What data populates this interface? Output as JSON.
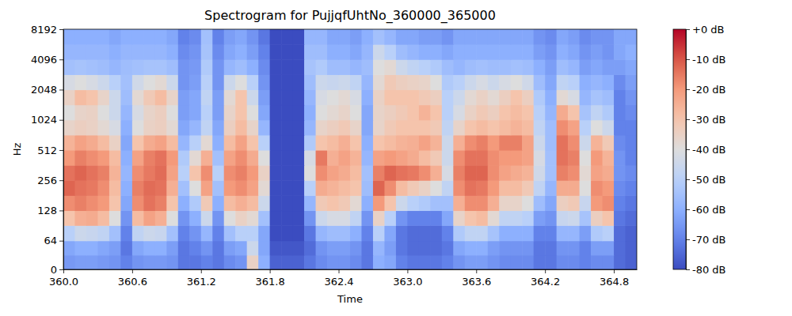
{
  "chart_data": {
    "type": "heatmap",
    "title": "Spectrogram for PujjqfUhtNo_360000_365000",
    "xlabel": "Time",
    "ylabel": "Hz",
    "log": "y",
    "xlim": [
      360,
      365
    ],
    "ylim": [
      0,
      8192
    ],
    "xticks": [
      {
        "value": 360,
        "label": "360.0"
      },
      360.6,
      361.2,
      361.8,
      362.4,
      {
        "value": 363,
        "label": "363.0"
      },
      363.6,
      364.2,
      364.8
    ],
    "yticks": [
      0,
      64,
      128,
      256,
      512,
      1024,
      2048,
      4096,
      8192
    ],
    "x_bins": [
      360,
      360.1,
      360.2,
      360.3,
      360.4,
      360.5,
      360.6,
      360.7,
      360.8,
      360.9,
      361,
      361.1,
      361.2,
      361.3,
      361.4,
      361.5,
      361.6,
      361.7,
      361.8,
      361.9,
      362,
      362.1,
      362.2,
      362.3,
      362.4,
      362.5,
      362.6,
      362.7,
      362.8,
      362.9,
      363,
      363.1,
      363.2,
      363.3,
      363.4,
      363.5,
      363.6,
      363.7,
      363.8,
      363.9,
      364,
      364.1,
      364.2,
      364.3,
      364.4,
      364.5,
      364.6,
      364.7,
      364.8,
      364.9,
      365
    ],
    "y_bins": [
      0,
      32,
      64,
      91,
      128,
      181,
      256,
      362,
      512,
      724,
      1024,
      1448,
      2048,
      2896,
      4096,
      5793,
      8192
    ],
    "values": [
      [
        -65,
        -64,
        -64,
        -65,
        -66,
        -70,
        -66,
        -65,
        -65,
        -66,
        -72,
        -72,
        -70,
        -72,
        -68,
        -66,
        -35,
        -60,
        -76,
        -76,
        -76,
        -72,
        -68,
        -66,
        -66,
        -68,
        -72,
        -60,
        -62,
        -70,
        -72,
        -72,
        -72,
        -70,
        -66,
        -64,
        -64,
        -66,
        -68,
        -68,
        -68,
        -72,
        -72,
        -68,
        -68,
        -70,
        -68,
        -68,
        -74,
        -76
      ],
      [
        -62,
        -60,
        -60,
        -62,
        -64,
        -72,
        -62,
        -60,
        -60,
        -64,
        -72,
        -70,
        -66,
        -72,
        -64,
        -62,
        -45,
        -62,
        -78,
        -78,
        -78,
        -74,
        -66,
        -64,
        -64,
        -66,
        -72,
        -58,
        -64,
        -72,
        -74,
        -74,
        -74,
        -72,
        -62,
        -60,
        -60,
        -64,
        -66,
        -66,
        -66,
        -72,
        -72,
        -66,
        -66,
        -70,
        -64,
        -64,
        -74,
        -76
      ],
      [
        -50,
        -45,
        -46,
        -48,
        -55,
        -70,
        -48,
        -45,
        -46,
        -55,
        -70,
        -66,
        -58,
        -70,
        -55,
        -50,
        -50,
        -62,
        -80,
        -80,
        -80,
        -72,
        -58,
        -56,
        -56,
        -60,
        -70,
        -50,
        -62,
        -72,
        -74,
        -74,
        -74,
        -70,
        -52,
        -48,
        -48,
        -54,
        -60,
        -60,
        -60,
        -70,
        -70,
        -58,
        -58,
        -64,
        -52,
        -50,
        -74,
        -76
      ],
      [
        -30,
        -25,
        -24,
        -28,
        -40,
        -66,
        -28,
        -22,
        -25,
        -40,
        -66,
        -60,
        -45,
        -66,
        -40,
        -35,
        -38,
        -55,
        -80,
        -80,
        -80,
        -66,
        -45,
        -42,
        -42,
        -48,
        -66,
        -35,
        -50,
        -66,
        -70,
        -70,
        -70,
        -62,
        -36,
        -30,
        -28,
        -38,
        -48,
        -48,
        -50,
        -64,
        -66,
        -46,
        -45,
        -54,
        -34,
        -30,
        -72,
        -74
      ],
      [
        -18,
        -16,
        -18,
        -20,
        -30,
        -62,
        -18,
        -14,
        -16,
        -30,
        -60,
        -52,
        -32,
        -60,
        -28,
        -25,
        -28,
        -45,
        -80,
        -80,
        -80,
        -58,
        -32,
        -30,
        -32,
        -38,
        -60,
        -20,
        -30,
        -45,
        -50,
        -52,
        -55,
        -55,
        -25,
        -18,
        -18,
        -25,
        -36,
        -36,
        -40,
        -56,
        -62,
        -34,
        -32,
        -46,
        -20,
        -18,
        -70,
        -72
      ],
      [
        -12,
        -14,
        -15,
        -18,
        -28,
        -60,
        -16,
        -13,
        -14,
        -25,
        -55,
        -40,
        -22,
        -55,
        -20,
        -18,
        -22,
        -38,
        -80,
        -80,
        -80,
        -50,
        -24,
        -26,
        -28,
        -30,
        -56,
        -12,
        -18,
        -28,
        -32,
        -35,
        -40,
        -48,
        -18,
        -14,
        -15,
        -20,
        -28,
        -28,
        -32,
        -48,
        -58,
        -24,
        -24,
        -40,
        -18,
        -20,
        -68,
        -70
      ],
      [
        -14,
        -12,
        -14,
        -16,
        -26,
        -58,
        -18,
        -15,
        -13,
        -22,
        -50,
        -30,
        -18,
        -50,
        -18,
        -16,
        -20,
        -35,
        -80,
        -80,
        -80,
        -40,
        -18,
        -22,
        -24,
        -28,
        -55,
        -16,
        -12,
        -14,
        -15,
        -18,
        -25,
        -42,
        -16,
        -12,
        -12,
        -18,
        -22,
        -24,
        -26,
        -44,
        -55,
        -16,
        -18,
        -38,
        -22,
        -24,
        -66,
        -68
      ],
      [
        -20,
        -16,
        -18,
        -20,
        -28,
        -60,
        -22,
        -16,
        -14,
        -20,
        -52,
        -38,
        -25,
        -55,
        -22,
        -18,
        -24,
        -40,
        -80,
        -80,
        -80,
        -42,
        -15,
        -25,
        -22,
        -26,
        -58,
        -22,
        -20,
        -22,
        -24,
        -28,
        -32,
        -45,
        -18,
        -14,
        -14,
        -18,
        -20,
        -20,
        -22,
        -42,
        -55,
        -14,
        -16,
        -40,
        -20,
        -26,
        -66,
        -70
      ],
      [
        -26,
        -22,
        -24,
        -28,
        -35,
        -62,
        -30,
        -24,
        -22,
        -28,
        -58,
        -50,
        -38,
        -60,
        -28,
        -22,
        -30,
        -50,
        -80,
        -80,
        -80,
        -52,
        -30,
        -28,
        -25,
        -30,
        -60,
        -30,
        -28,
        -26,
        -25,
        -22,
        -26,
        -45,
        -25,
        -18,
        -16,
        -20,
        -16,
        -16,
        -22,
        -45,
        -56,
        -14,
        -18,
        -45,
        -26,
        -32,
        -68,
        -70
      ],
      [
        -36,
        -34,
        -35,
        -38,
        -42,
        -60,
        -40,
        -35,
        -34,
        -38,
        -62,
        -58,
        -48,
        -62,
        -34,
        -28,
        -36,
        -58,
        -80,
        -80,
        -80,
        -58,
        -36,
        -34,
        -32,
        -36,
        -62,
        -36,
        -32,
        -30,
        -30,
        -30,
        -32,
        -48,
        -36,
        -30,
        -28,
        -30,
        -28,
        -26,
        -28,
        -48,
        -56,
        -18,
        -22,
        -50,
        -40,
        -45,
        -70,
        -70
      ],
      [
        -40,
        -36,
        -35,
        -40,
        -45,
        -58,
        -42,
        -36,
        -34,
        -40,
        -64,
        -62,
        -50,
        -64,
        -36,
        -30,
        -40,
        -62,
        -80,
        -80,
        -80,
        -60,
        -40,
        -38,
        -36,
        -40,
        -62,
        -36,
        -34,
        -32,
        -30,
        -26,
        -30,
        -50,
        -42,
        -35,
        -32,
        -34,
        -30,
        -28,
        -30,
        -50,
        -58,
        -24,
        -30,
        -54,
        -48,
        -52,
        -70,
        -68
      ],
      [
        -35,
        -28,
        -30,
        -36,
        -45,
        -56,
        -38,
        -32,
        -28,
        -36,
        -64,
        -62,
        -48,
        -64,
        -38,
        -30,
        -45,
        -64,
        -80,
        -80,
        -80,
        -58,
        -42,
        -40,
        -38,
        -42,
        -60,
        -35,
        -30,
        -30,
        -30,
        -32,
        -34,
        -50,
        -45,
        -38,
        -35,
        -38,
        -34,
        -30,
        -34,
        -52,
        -60,
        -38,
        -42,
        -58,
        -54,
        -56,
        -70,
        -66
      ],
      [
        -42,
        -40,
        -42,
        -45,
        -50,
        -55,
        -44,
        -40,
        -38,
        -45,
        -66,
        -64,
        -50,
        -66,
        -45,
        -40,
        -50,
        -66,
        -80,
        -80,
        -80,
        -56,
        -45,
        -46,
        -45,
        -48,
        -58,
        -38,
        -32,
        -34,
        -35,
        -36,
        -40,
        -52,
        -50,
        -45,
        -42,
        -45,
        -42,
        -40,
        -44,
        -56,
        -62,
        -48,
        -50,
        -60,
        -58,
        -60,
        -68,
        -64
      ],
      [
        -55,
        -54,
        -55,
        -56,
        -58,
        -56,
        -55,
        -54,
        -54,
        -56,
        -66,
        -65,
        -52,
        -66,
        -58,
        -56,
        -60,
        -68,
        -80,
        -80,
        -80,
        -54,
        -52,
        -56,
        -56,
        -58,
        -56,
        -40,
        -38,
        -45,
        -48,
        -50,
        -52,
        -56,
        -58,
        -56,
        -55,
        -56,
        -56,
        -55,
        -56,
        -60,
        -64,
        -56,
        -58,
        -64,
        -62,
        -64,
        -64,
        -62
      ],
      [
        -58,
        -58,
        -58,
        -58,
        -60,
        -58,
        -58,
        -58,
        -58,
        -60,
        -68,
        -66,
        -54,
        -68,
        -62,
        -60,
        -64,
        -70,
        -80,
        -80,
        -80,
        -56,
        -56,
        -60,
        -60,
        -62,
        -58,
        -45,
        -50,
        -56,
        -58,
        -60,
        -60,
        -62,
        -60,
        -60,
        -60,
        -60,
        -60,
        -60,
        -60,
        -64,
        -66,
        -60,
        -62,
        -66,
        -64,
        -66,
        -62,
        -60
      ],
      [
        -60,
        -60,
        -60,
        -60,
        -62,
        -60,
        -60,
        -60,
        -60,
        -62,
        -70,
        -68,
        -55,
        -70,
        -64,
        -62,
        -66,
        -72,
        -80,
        -80,
        -80,
        -58,
        -58,
        -62,
        -62,
        -64,
        -60,
        -55,
        -58,
        -62,
        -62,
        -64,
        -64,
        -66,
        -62,
        -62,
        -62,
        -62,
        -62,
        -62,
        -62,
        -66,
        -68,
        -62,
        -64,
        -68,
        -66,
        -66,
        -62,
        -62
      ]
    ],
    "colorbar": {
      "range": [
        -80,
        0
      ],
      "ticks": [
        {
          "value": 0,
          "label": "+0 dB"
        },
        {
          "value": -10,
          "label": "-10 dB"
        },
        {
          "value": -20,
          "label": "-20 dB"
        },
        {
          "value": -30,
          "label": "-30 dB"
        },
        {
          "value": -40,
          "label": "-40 dB"
        },
        {
          "value": -50,
          "label": "-50 dB"
        },
        {
          "value": -60,
          "label": "-60 dB"
        },
        {
          "value": -70,
          "label": "-70 dB"
        },
        {
          "value": -80,
          "label": "-80 dB"
        }
      ]
    }
  }
}
